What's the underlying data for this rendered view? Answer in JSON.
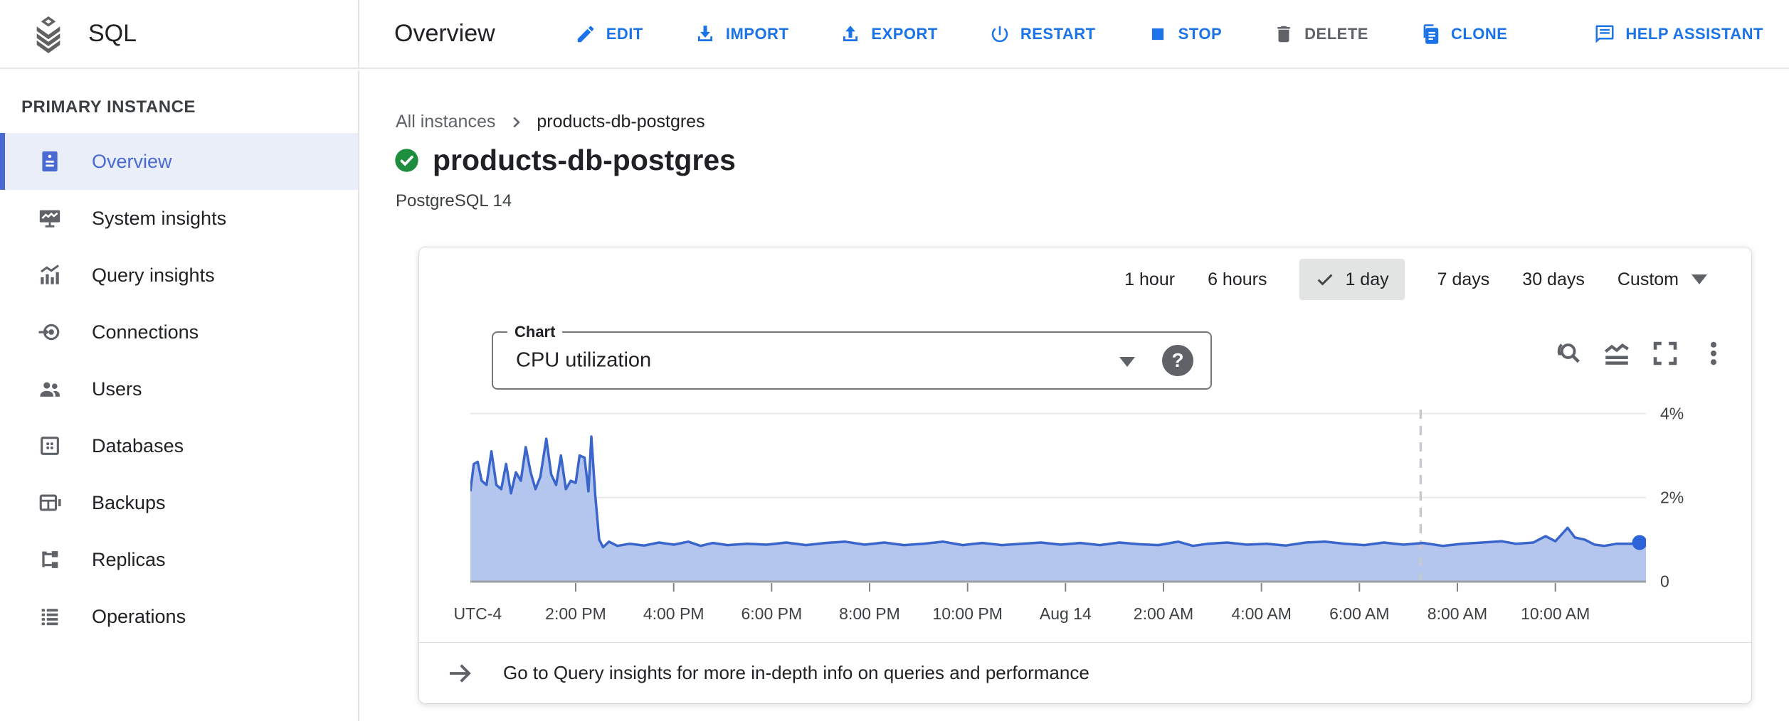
{
  "colors": {
    "action_blue": "#1a73e8",
    "disabled_gray": "#5f6368",
    "sidebar_selected_blue": "#4a6ad1",
    "sidebar_selected_bg": "#e9eef9",
    "status_green": "#1e8e3e",
    "chart_line": "#3a66cc",
    "chart_fill": "#b4c6ee"
  },
  "topbar": {
    "product_name": "SQL",
    "page_title": "Overview",
    "actions": [
      {
        "label": "EDIT",
        "icon": "pencil-icon"
      },
      {
        "label": "IMPORT",
        "icon": "import-icon"
      },
      {
        "label": "EXPORT",
        "icon": "export-icon"
      },
      {
        "label": "RESTART",
        "icon": "power-icon"
      },
      {
        "label": "STOP",
        "icon": "stop-icon"
      },
      {
        "label": "DELETE",
        "icon": "trash-icon",
        "disabled": true
      },
      {
        "label": "CLONE",
        "icon": "clone-icon"
      },
      {
        "label": "HELP ASSISTANT",
        "icon": "chat-icon"
      }
    ]
  },
  "sidebar": {
    "section_label": "PRIMARY INSTANCE",
    "items": [
      {
        "label": "Overview",
        "icon": "overview-icon",
        "selected": true
      },
      {
        "label": "System insights",
        "icon": "system-insights-icon"
      },
      {
        "label": "Query insights",
        "icon": "query-insights-icon"
      },
      {
        "label": "Connections",
        "icon": "connections-icon"
      },
      {
        "label": "Users",
        "icon": "users-icon"
      },
      {
        "label": "Databases",
        "icon": "databases-icon"
      },
      {
        "label": "Backups",
        "icon": "backups-icon"
      },
      {
        "label": "Replicas",
        "icon": "replicas-icon"
      },
      {
        "label": "Operations",
        "icon": "operations-icon"
      }
    ]
  },
  "content": {
    "breadcrumb": {
      "parent": "All instances",
      "current": "products-db-postgres"
    },
    "instance_name": "products-db-postgres",
    "instance_status": "running",
    "database_version": "PostgreSQL 14",
    "time_range": {
      "options": [
        "1 hour",
        "6 hours",
        "1 day",
        "7 days",
        "30 days",
        "Custom"
      ],
      "selected": "1 day"
    },
    "chart_selector": {
      "label": "Chart",
      "value": "CPU utilization"
    },
    "chart_toolbar_icons": [
      "zoom-reset-icon",
      "area-chart-icon",
      "fullscreen-icon",
      "more-options-icon"
    ],
    "footer_link": "Go to Query insights for more in-depth info on queries and performance"
  },
  "chart_data": {
    "type": "area",
    "title": "CPU utilization",
    "unit": "percent",
    "x_axis_note": "24 hours, UTC-4, Aug 13 noon to Aug 14 noon",
    "x_domain_hours": [
      11.85,
      35.85
    ],
    "ylim": [
      0,
      4.33
    ],
    "y_gridlines": [
      2,
      4
    ],
    "y_tick_labels": [
      {
        "value": 4,
        "label": "4%"
      },
      {
        "value": 2,
        "label": "2%"
      },
      {
        "value": 0,
        "label": "0"
      }
    ],
    "x_ticks": [
      {
        "hour": 12,
        "label": "UTC-4",
        "tick": false
      },
      {
        "hour": 14,
        "label": "2:00 PM"
      },
      {
        "hour": 16,
        "label": "4:00 PM"
      },
      {
        "hour": 18,
        "label": "6:00 PM"
      },
      {
        "hour": 20,
        "label": "8:00 PM"
      },
      {
        "hour": 22,
        "label": "10:00 PM"
      },
      {
        "hour": 24,
        "label": "Aug 14"
      },
      {
        "hour": 26,
        "label": "2:00 AM"
      },
      {
        "hour": 28,
        "label": "4:00 AM"
      },
      {
        "hour": 30,
        "label": "6:00 AM"
      },
      {
        "hour": 32,
        "label": "8:00 AM"
      },
      {
        "hour": 34,
        "label": "10:00 AM"
      }
    ],
    "dashed_marker_hour": 31.25,
    "line_color": "#3a66cc",
    "fill_color": "#b4c6ee",
    "endpoint_dot": true,
    "series": [
      {
        "name": "CPU utilization (%)",
        "points": [
          [
            11.85,
            2.15
          ],
          [
            11.92,
            2.8
          ],
          [
            12.0,
            2.85
          ],
          [
            12.08,
            2.4
          ],
          [
            12.18,
            2.3
          ],
          [
            12.28,
            3.1
          ],
          [
            12.38,
            2.3
          ],
          [
            12.48,
            2.2
          ],
          [
            12.58,
            2.8
          ],
          [
            12.68,
            2.1
          ],
          [
            12.78,
            2.6
          ],
          [
            12.88,
            2.4
          ],
          [
            12.98,
            3.2
          ],
          [
            13.08,
            2.6
          ],
          [
            13.18,
            2.2
          ],
          [
            13.28,
            2.5
          ],
          [
            13.4,
            3.4
          ],
          [
            13.5,
            2.55
          ],
          [
            13.6,
            2.3
          ],
          [
            13.7,
            3.0
          ],
          [
            13.8,
            2.2
          ],
          [
            13.9,
            2.4
          ],
          [
            14.0,
            2.35
          ],
          [
            14.08,
            3.0
          ],
          [
            14.18,
            2.95
          ],
          [
            14.26,
            2.15
          ],
          [
            14.32,
            3.45
          ],
          [
            14.4,
            2.05
          ],
          [
            14.48,
            1.0
          ],
          [
            14.56,
            0.82
          ],
          [
            14.68,
            0.95
          ],
          [
            14.85,
            0.85
          ],
          [
            15.1,
            0.9
          ],
          [
            15.4,
            0.86
          ],
          [
            15.7,
            0.93
          ],
          [
            16.0,
            0.88
          ],
          [
            16.3,
            0.95
          ],
          [
            16.55,
            0.85
          ],
          [
            16.8,
            0.92
          ],
          [
            17.1,
            0.87
          ],
          [
            17.5,
            0.9
          ],
          [
            17.9,
            0.88
          ],
          [
            18.3,
            0.93
          ],
          [
            18.7,
            0.87
          ],
          [
            19.1,
            0.92
          ],
          [
            19.5,
            0.95
          ],
          [
            19.9,
            0.88
          ],
          [
            20.3,
            0.93
          ],
          [
            20.7,
            0.87
          ],
          [
            21.1,
            0.9
          ],
          [
            21.5,
            0.95
          ],
          [
            21.9,
            0.87
          ],
          [
            22.3,
            0.92
          ],
          [
            22.7,
            0.87
          ],
          [
            23.1,
            0.9
          ],
          [
            23.5,
            0.93
          ],
          [
            23.9,
            0.88
          ],
          [
            24.3,
            0.92
          ],
          [
            24.7,
            0.87
          ],
          [
            25.1,
            0.93
          ],
          [
            25.5,
            0.89
          ],
          [
            25.9,
            0.87
          ],
          [
            26.3,
            0.95
          ],
          [
            26.6,
            0.85
          ],
          [
            26.9,
            0.9
          ],
          [
            27.3,
            0.93
          ],
          [
            27.7,
            0.88
          ],
          [
            28.1,
            0.9
          ],
          [
            28.5,
            0.86
          ],
          [
            28.9,
            0.93
          ],
          [
            29.3,
            0.95
          ],
          [
            29.7,
            0.9
          ],
          [
            30.1,
            0.87
          ],
          [
            30.5,
            0.93
          ],
          [
            30.9,
            0.88
          ],
          [
            31.3,
            0.92
          ],
          [
            31.7,
            0.85
          ],
          [
            32.1,
            0.9
          ],
          [
            32.5,
            0.93
          ],
          [
            32.9,
            0.96
          ],
          [
            33.2,
            0.9
          ],
          [
            33.55,
            0.93
          ],
          [
            33.8,
            1.08
          ],
          [
            34.0,
            0.96
          ],
          [
            34.25,
            1.28
          ],
          [
            34.4,
            1.05
          ],
          [
            34.6,
            1.0
          ],
          [
            34.8,
            0.88
          ],
          [
            35.0,
            0.85
          ],
          [
            35.25,
            0.9
          ],
          [
            35.55,
            0.9
          ],
          [
            35.85,
            0.93
          ]
        ]
      }
    ]
  }
}
